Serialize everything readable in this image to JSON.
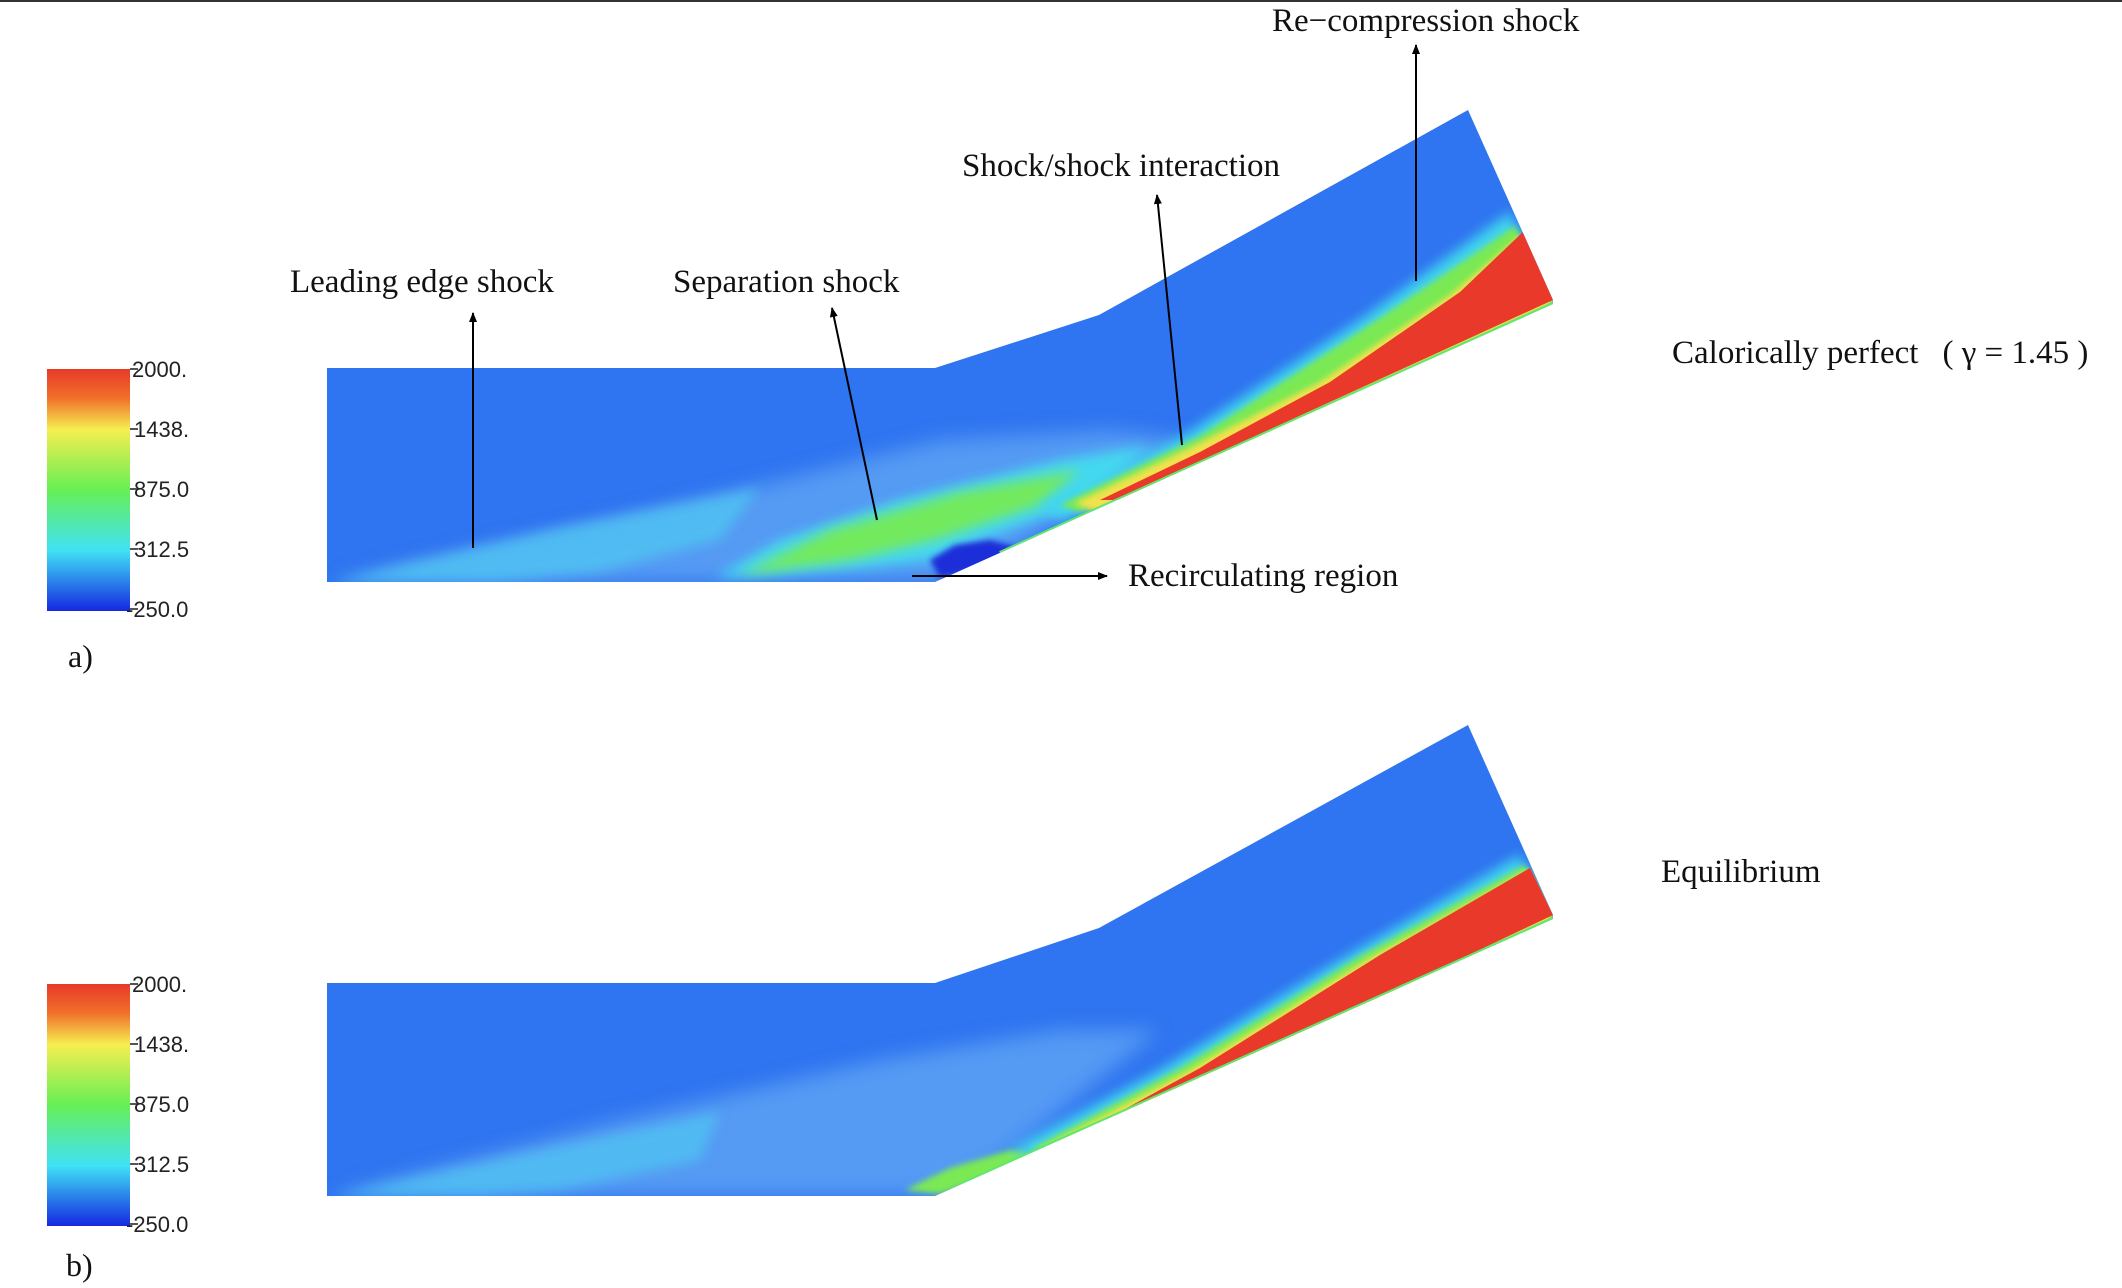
{
  "colorbar": {
    "ticks": [
      "2000.",
      "1438.",
      "875.0",
      "312.5",
      "-250.0"
    ]
  },
  "colors": {
    "free_stream": "#2f74f0",
    "low": "#1528e0",
    "cyan": "#40e2f5",
    "green": "#66ef55",
    "yellow": "#f6ee50",
    "red": "#e8392a"
  },
  "panels": [
    {
      "tag": "a)",
      "title": "Calorically perfect",
      "gamma": "( γ = 1.45 )",
      "annotations": {
        "leading_edge_shock": "Leading edge shock",
        "separation_shock": "Separation shock",
        "shock_shock_interaction": "Shock/shock interaction",
        "recompression_shock": "Re−compression shock",
        "recirculating_region": "Recirculating region"
      }
    },
    {
      "tag": "b)",
      "title": "Equilibrium"
    }
  ]
}
